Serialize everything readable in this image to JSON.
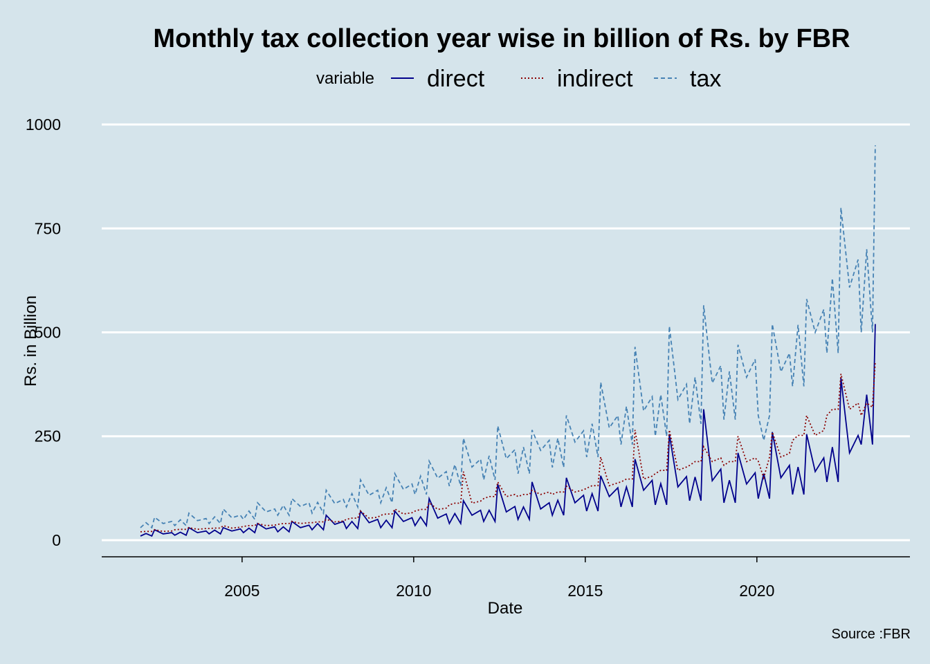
{
  "chart_data": {
    "type": "line",
    "title": "Monthly tax collection year wise in billion of Rs. by FBR",
    "legend_title": "variable",
    "x_label": "Date",
    "y_label": "Rs. in Billion",
    "caption": "Source :FBR",
    "xlim": [
      2000.91,
      2024.46
    ],
    "ylim": [
      -40,
      1025
    ],
    "xticks": [
      2005,
      2010,
      2015,
      2020
    ],
    "yticks": [
      0,
      250,
      500,
      750,
      1000
    ],
    "grid": true,
    "legend_position": "top",
    "x": [
      2002.04,
      2002.2,
      2002.37,
      2002.45,
      2002.7,
      2002.95,
      2003.04,
      2003.2,
      2003.37,
      2003.45,
      2003.7,
      2003.95,
      2004.04,
      2004.2,
      2004.37,
      2004.45,
      2004.7,
      2004.95,
      2005.04,
      2005.2,
      2005.37,
      2005.45,
      2005.7,
      2005.95,
      2006.04,
      2006.2,
      2006.37,
      2006.45,
      2006.7,
      2006.95,
      2007.04,
      2007.2,
      2007.37,
      2007.45,
      2007.7,
      2007.95,
      2008.04,
      2008.2,
      2008.37,
      2008.45,
      2008.7,
      2008.95,
      2009.04,
      2009.2,
      2009.37,
      2009.45,
      2009.7,
      2009.95,
      2010.04,
      2010.2,
      2010.37,
      2010.45,
      2010.7,
      2010.95,
      2011.04,
      2011.2,
      2011.37,
      2011.45,
      2011.7,
      2011.95,
      2012.04,
      2012.2,
      2012.37,
      2012.45,
      2012.7,
      2012.95,
      2013.04,
      2013.2,
      2013.37,
      2013.45,
      2013.7,
      2013.95,
      2014.04,
      2014.2,
      2014.37,
      2014.45,
      2014.7,
      2014.95,
      2015.04,
      2015.2,
      2015.37,
      2015.45,
      2015.7,
      2015.95,
      2016.04,
      2016.2,
      2016.37,
      2016.45,
      2016.7,
      2016.95,
      2017.04,
      2017.2,
      2017.37,
      2017.45,
      2017.7,
      2017.95,
      2018.04,
      2018.2,
      2018.37,
      2018.45,
      2018.7,
      2018.95,
      2019.04,
      2019.2,
      2019.37,
      2019.45,
      2019.7,
      2019.95,
      2020.04,
      2020.2,
      2020.37,
      2020.45,
      2020.7,
      2020.95,
      2021.04,
      2021.2,
      2021.37,
      2021.45,
      2021.7,
      2021.95,
      2022.04,
      2022.2,
      2022.37,
      2022.45,
      2022.7,
      2022.95,
      2023.04,
      2023.2,
      2023.37,
      2023.45
    ],
    "series": [
      {
        "name": "direct",
        "color": "#00008b",
        "linestyle": "solid",
        "values": [
          10,
          16,
          10,
          25,
          15,
          18,
          12,
          19,
          12,
          30,
          18,
          22,
          15,
          24,
          15,
          30,
          22,
          27,
          18,
          29,
          18,
          40,
          27,
          32,
          20,
          32,
          20,
          45,
          30,
          36,
          25,
          40,
          25,
          60,
          38,
          45,
          28,
          45,
          28,
          70,
          42,
          50,
          30,
          48,
          30,
          70,
          45,
          54,
          35,
          56,
          35,
          100,
          53,
          63,
          40,
          64,
          40,
          95,
          60,
          72,
          45,
          72,
          45,
          135,
          68,
          81,
          50,
          80,
          50,
          140,
          75,
          90,
          60,
          96,
          60,
          150,
          90,
          108,
          70,
          112,
          70,
          155,
          105,
          126,
          80,
          128,
          80,
          195,
          120,
          144,
          85,
          136,
          85,
          255,
          128,
          153,
          95,
          152,
          95,
          315,
          143,
          171,
          90,
          144,
          90,
          210,
          135,
          162,
          100,
          160,
          100,
          260,
          150,
          180,
          110,
          176,
          110,
          255,
          165,
          198,
          140,
          224,
          140,
          390,
          210,
          252,
          230,
          350,
          230,
          520
        ]
      },
      {
        "name": "indirect",
        "color": "#8b0000",
        "linestyle": "dotted",
        "values": [
          20,
          21,
          21,
          25,
          21,
          22,
          25,
          26,
          26,
          30,
          26,
          28,
          28,
          29,
          29,
          35,
          29,
          31,
          33,
          35,
          35,
          40,
          35,
          36,
          38,
          40,
          40,
          45,
          40,
          42,
          42,
          44,
          44,
          50,
          44,
          46,
          50,
          53,
          53,
          70,
          53,
          55,
          60,
          63,
          63,
          75,
          63,
          66,
          70,
          74,
          74,
          90,
          74,
          77,
          85,
          89,
          89,
          165,
          89,
          94,
          100,
          105,
          105,
          140,
          105,
          110,
          105,
          110,
          110,
          120,
          110,
          116,
          110,
          116,
          116,
          130,
          116,
          121,
          125,
          131,
          131,
          200,
          131,
          138,
          140,
          147,
          147,
          265,
          147,
          154,
          160,
          168,
          168,
          265,
          168,
          176,
          180,
          189,
          189,
          225,
          189,
          198,
          180,
          189,
          189,
          250,
          189,
          198,
          190,
          150,
          200,
          260,
          200,
          209,
          240,
          252,
          252,
          300,
          252,
          264,
          300,
          315,
          315,
          400,
          315,
          330,
          300,
          330,
          320,
          430
        ]
      },
      {
        "name": "tax",
        "color": "#4682b4",
        "linestyle": "dashed",
        "values": [
          30,
          42,
          30,
          55,
          40,
          45,
          35,
          49,
          35,
          65,
          47,
          52,
          40,
          56,
          40,
          75,
          54,
          60,
          50,
          70,
          50,
          90,
          68,
          75,
          60,
          84,
          60,
          100,
          81,
          90,
          65,
          91,
          65,
          120,
          88,
          98,
          80,
          112,
          80,
          145,
          108,
          120,
          90,
          126,
          90,
          160,
          122,
          135,
          110,
          154,
          110,
          190,
          149,
          165,
          130,
          182,
          130,
          245,
          176,
          195,
          145,
          203,
          145,
          275,
          196,
          218,
          160,
          224,
          160,
          265,
          216,
          240,
          175,
          245,
          175,
          300,
          236,
          263,
          200,
          280,
          200,
          380,
          270,
          300,
          230,
          322,
          230,
          465,
          311,
          345,
          250,
          350,
          250,
          515,
          338,
          375,
          280,
          392,
          280,
          565,
          378,
          420,
          290,
          406,
          290,
          470,
          392,
          435,
          300,
          240,
          300,
          520,
          405,
          450,
          370,
          518,
          370,
          580,
          500,
          555,
          450,
          630,
          450,
          800,
          608,
          675,
          500,
          700,
          500,
          950
        ]
      }
    ]
  }
}
